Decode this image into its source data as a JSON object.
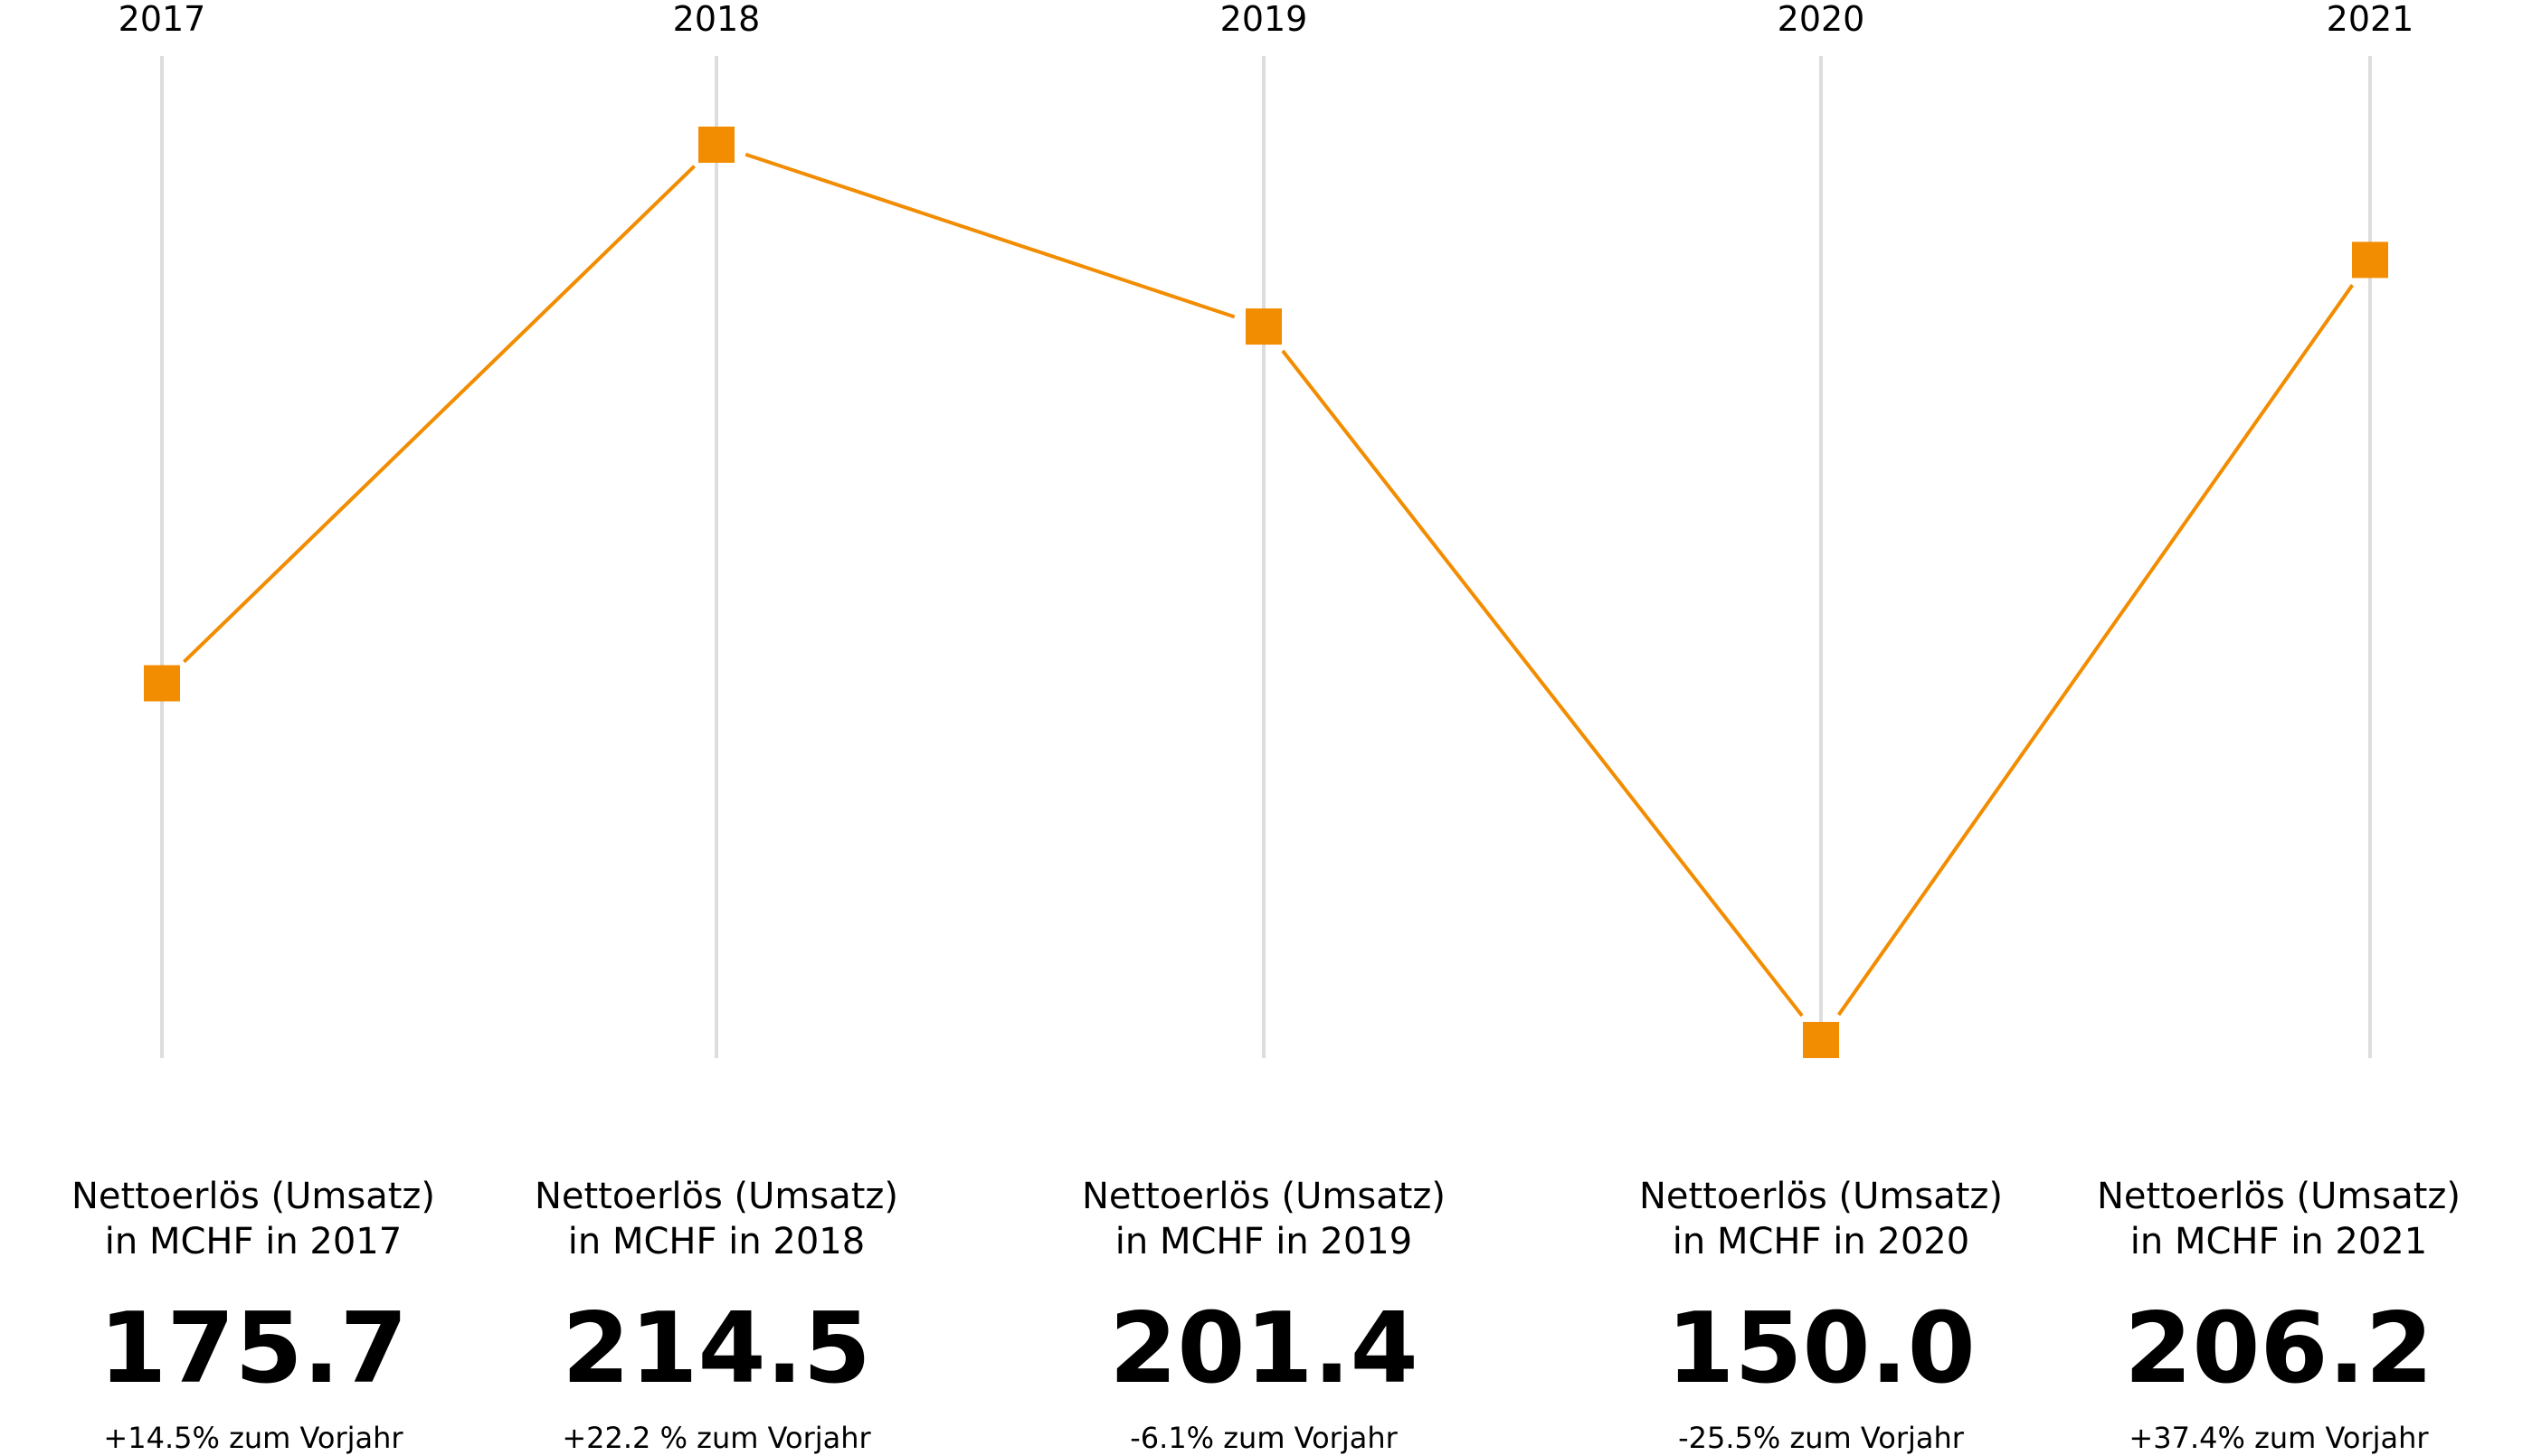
{
  "chart_data": {
    "type": "line",
    "categories": [
      "2017",
      "2018",
      "2019",
      "2020",
      "2021"
    ],
    "values": [
      175.7,
      214.5,
      201.4,
      150.0,
      206.2
    ],
    "series_color": "#F28C00",
    "gridline_color": "#DDDDDD",
    "marker": "square",
    "ylim": [
      150.0,
      214.5
    ],
    "grid": "vertical"
  },
  "columns": [
    {
      "caption_line1": "Nettoerlös (Umsatz)",
      "caption_line2": "in MCHF in 2017",
      "value": "175.7",
      "change": "+14.5% zum Vorjahr"
    },
    {
      "caption_line1": "Nettoerlös (Umsatz)",
      "caption_line2": "in MCHF in 2018",
      "value": "214.5",
      "change": "+22.2 % zum Vorjahr"
    },
    {
      "caption_line1": "Nettoerlös (Umsatz)",
      "caption_line2": "in MCHF in 2019",
      "value": "201.4",
      "change": "-6.1% zum Vorjahr"
    },
    {
      "caption_line1": "Nettoerlös (Umsatz)",
      "caption_line2": "in MCHF in 2020",
      "value": "150.0",
      "change": "-25.5% zum Vorjahr"
    },
    {
      "caption_line1": "Nettoerlös (Umsatz)",
      "caption_line2": "in MCHF in 2021",
      "value": "206.2",
      "change": "+37.4% zum Vorjahr"
    }
  ]
}
